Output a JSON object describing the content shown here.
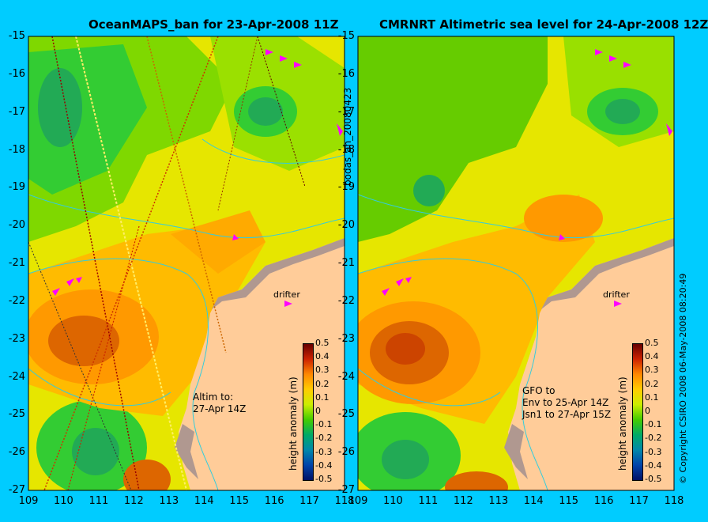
{
  "left_panel": {
    "title": "OceanMAPS_ban for 23-Apr-2008 11Z",
    "annotation_lines": [
      "Altim to:",
      "27-Apr 14Z"
    ],
    "drifter_label": "drifter"
  },
  "right_panel": {
    "title": "CMRNRT Altimetric sea level  for 24-Apr-2008 12Z",
    "annotation_lines": [
      "GFO to",
      "Env to 25-Apr 14Z",
      "Jsn1 to 27-Apr 15Z"
    ],
    "drifter_label": "drifter"
  },
  "y_ticks": [
    "-15",
    "-16",
    "-17",
    "-18",
    "-19",
    "-20",
    "-21",
    "-22",
    "-23",
    "-24",
    "-25",
    "-26",
    "-27"
  ],
  "x_ticks": [
    "109",
    "110",
    "111",
    "112",
    "113",
    "114",
    "115",
    "116",
    "117",
    "118"
  ],
  "colorbar": {
    "labels": [
      "0.5",
      "0.4",
      "0.3",
      "0.2",
      "0.1",
      "0",
      "-0.1",
      "-0.2",
      "-0.3",
      "-0.4",
      "-0.5"
    ],
    "axis_label": "height anomaly (m)"
  },
  "side_label_mid": "bodas_an_20080423",
  "side_label_right": "© Copyright CSIRO 2008   06-May-2008 08:20:49",
  "colors": {
    "background": "#00ccff",
    "land": "#ffcc99",
    "coast_shelf": "#b09890",
    "contour": "#33ccdd",
    "drifter_marker": "#ff00ff"
  }
}
